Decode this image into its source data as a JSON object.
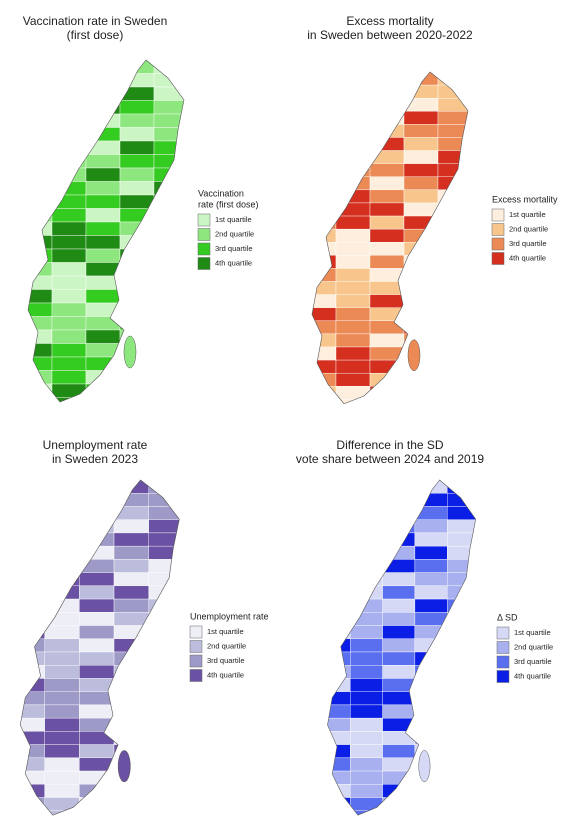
{
  "panels": [
    {
      "title_lines": [
        "Vaccination rate in Sweden",
        "(first dose)"
      ],
      "legend_title_lines": [
        "Vaccination",
        "rate (first dose)"
      ],
      "legend_items": [
        {
          "label": "1st quartile",
          "color": "#ccf5c4"
        },
        {
          "label": "2nd quartile",
          "color": "#8de67e"
        },
        {
          "label": "3rd quartile",
          "color": "#35cc22"
        },
        {
          "label": "4th quartile",
          "color": "#1f8a14"
        }
      ]
    },
    {
      "title_lines": [
        "Excess mortality",
        "in Sweden between 2020-2022"
      ],
      "legend_title_lines": [
        "Excess mortality"
      ],
      "legend_items": [
        {
          "label": "1st quartile",
          "color": "#fdeedd"
        },
        {
          "label": "2nd quartile",
          "color": "#f8c68c"
        },
        {
          "label": "3rd quartile",
          "color": "#ec8a55"
        },
        {
          "label": "4th quartile",
          "color": "#d5301f"
        }
      ]
    },
    {
      "title_lines": [
        "Unemployment rate",
        "in Sweden 2023"
      ],
      "legend_title_lines": [
        "Unemployment rate"
      ],
      "legend_items": [
        {
          "label": "1st quartile",
          "color": "#eeeef6"
        },
        {
          "label": "2nd quartile",
          "color": "#bcbddc"
        },
        {
          "label": "3rd quartile",
          "color": "#9e9ac8"
        },
        {
          "label": "4th quartile",
          "color": "#6a51a3"
        }
      ]
    },
    {
      "title_lines": [
        "Difference in the SD",
        "vote share between 2024 and 2019"
      ],
      "legend_title_lines": [
        "Δ SD"
      ],
      "legend_items": [
        {
          "label": "1st quartile",
          "color": "#d6d9f6"
        },
        {
          "label": "2nd quartile",
          "color": "#a8b0f0"
        },
        {
          "label": "3rd quartile",
          "color": "#5a6ef0"
        },
        {
          "label": "4th quartile",
          "color": "#0a1ee6"
        }
      ]
    }
  ]
}
